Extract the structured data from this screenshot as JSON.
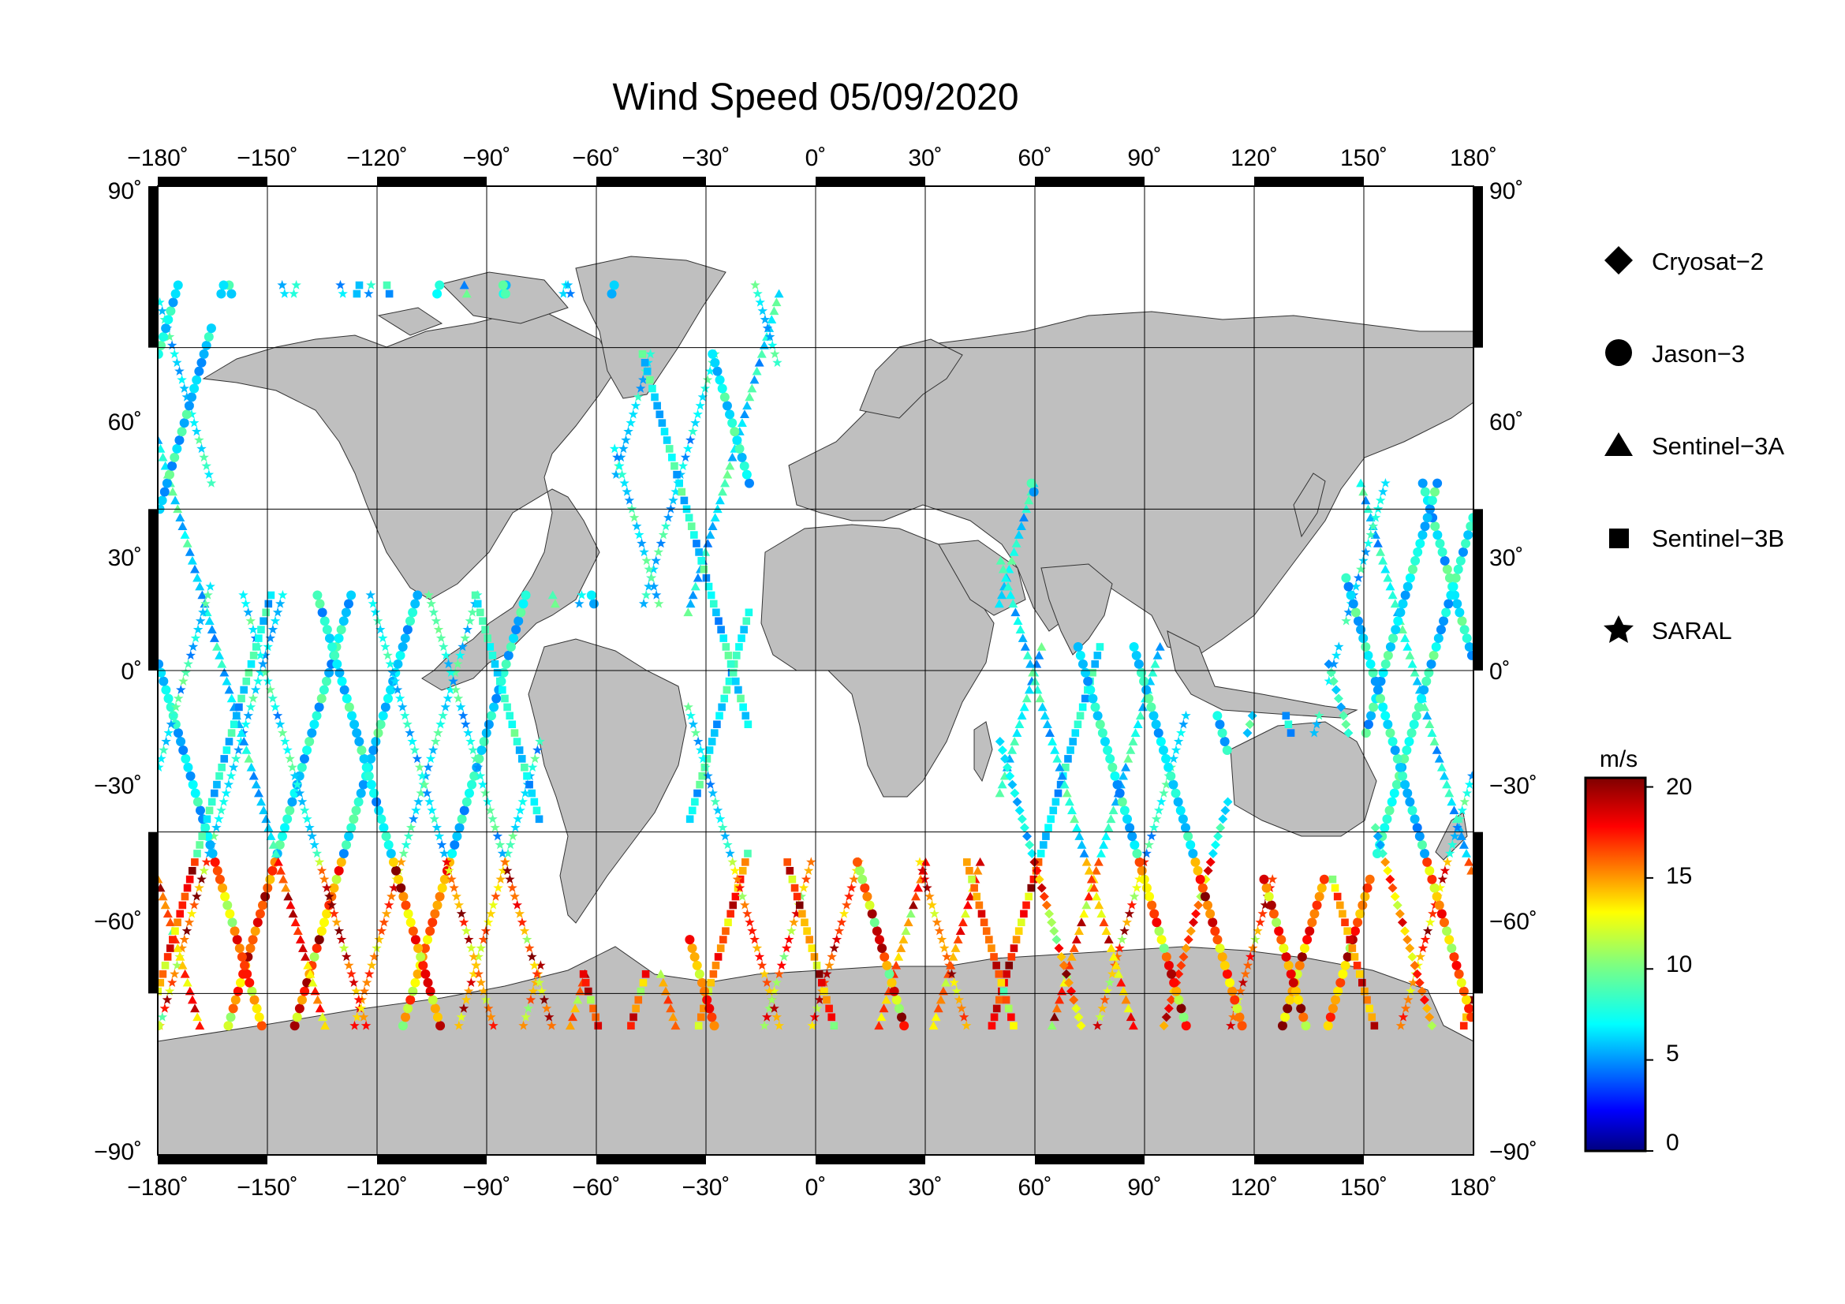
{
  "chart_data": {
    "type": "map",
    "title": "Wind Speed 05/09/2020",
    "x_ticks": [
      "−180˚",
      "−150˚",
      "−120˚",
      "−90˚",
      "−60˚",
      "−30˚",
      "0˚",
      "30˚",
      "60˚",
      "90˚",
      "120˚",
      "150˚",
      "180˚"
    ],
    "y_ticks": [
      "90˚",
      "60˚",
      "30˚",
      "0˚",
      "−30˚",
      "−60˚",
      "−90˚"
    ],
    "xlim": [
      -180,
      180
    ],
    "ylim": [
      -90,
      90
    ],
    "grid": true,
    "legend": {
      "placement": "right",
      "items": [
        {
          "label": "Cryosat−2",
          "marker": "diamond"
        },
        {
          "label": "Jason−3",
          "marker": "circle"
        },
        {
          "label": "Sentinel−3A",
          "marker": "triangle"
        },
        {
          "label": "Sentinel−3B",
          "marker": "square"
        },
        {
          "label": "SARAL",
          "marker": "star"
        }
      ]
    },
    "colorbar": {
      "unit": "m/s",
      "ticks": [
        "0",
        "5",
        "10",
        "15",
        "20"
      ],
      "range": [
        0,
        20.5
      ],
      "colormap": [
        "#00007f",
        "#0000ff",
        "#007fff",
        "#00ffff",
        "#7fff7f",
        "#ffff00",
        "#ff7f00",
        "#ff0000",
        "#7f0000"
      ]
    },
    "colors": {
      "land": "#bfbfbf",
      "ocean": "#ffffff"
    }
  }
}
